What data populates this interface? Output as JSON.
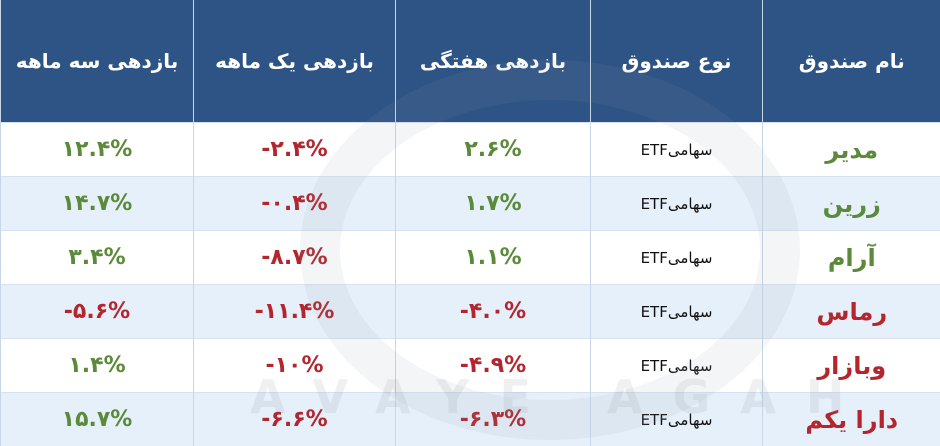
{
  "table": {
    "header": [
      "نام  صندوق",
      "نوع  صندوق",
      "بازدهی هفتگی",
      "بازدهی یک ماهه",
      "بازدهی سه ماهه"
    ],
    "rows": [
      [
        "مدیر",
        "سهامیETF",
        "۲.۶%",
        "-۲.۴%",
        "۱۲.۴%"
      ],
      [
        "زرین",
        "سهامیETF",
        "۱.۷%",
        "-۰.۴%",
        "۱۴.۷%"
      ],
      [
        "آرام",
        "سهامیETF",
        "۱.۱%",
        "-۸.۷%",
        "۳.۴%"
      ],
      [
        "رماس",
        "سهامیETF",
        "-۴.۰%",
        "-۱۱.۴%",
        "-۵.۶%"
      ],
      [
        "وبازار",
        "سهامیETF",
        "-۴.۹%",
        "-۱۰%",
        "۱.۴%"
      ],
      [
        "دارا  یکم",
        "سهامیETF",
        "-۶.۳%",
        "-۶.۶%",
        "۱۵.۷%"
      ]
    ]
  },
  "watermark": "AVAYE AGAH"
}
